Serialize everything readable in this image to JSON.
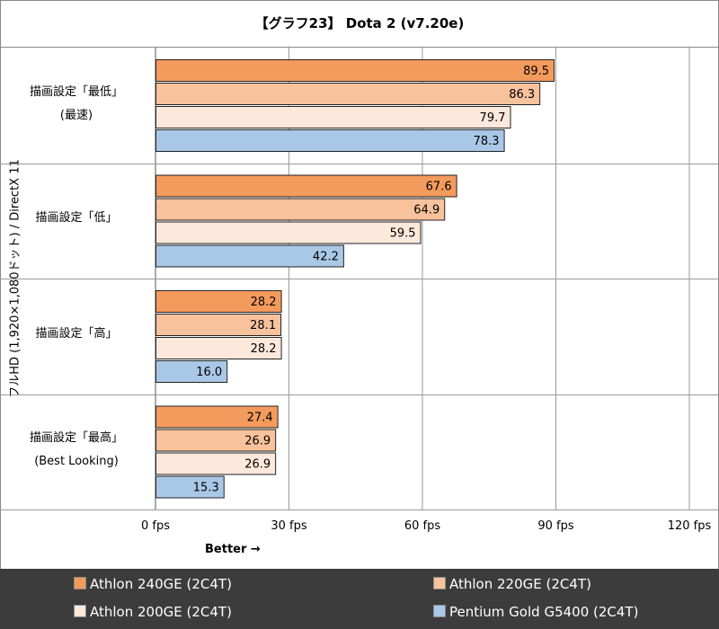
{
  "chart_data": {
    "type": "bar",
    "orientation": "horizontal",
    "title": "【グラフ23】 Dota 2 (v7.20e)",
    "ylabel": "フルHD (1,920×1,080ドット) / DirectX 11",
    "xlabel": "Better →",
    "xlim": [
      0,
      120
    ],
    "xticks": [
      0,
      30,
      60,
      90,
      120
    ],
    "xtick_labels": [
      "0 fps",
      "30 fps",
      "60 fps",
      "90 fps",
      "120 fps"
    ],
    "categories": [
      {
        "line1": "描画設定「最低」",
        "line2": "(最速)"
      },
      {
        "line1": "描画設定「低」",
        "line2": ""
      },
      {
        "line1": "描画設定「高」",
        "line2": ""
      },
      {
        "line1": "描画設定「最高」",
        "line2": "(Best Looking)"
      }
    ],
    "series": [
      {
        "name": "Athlon 240GE (2C4T)",
        "color": "#f39b5c",
        "values": [
          89.5,
          67.6,
          28.2,
          27.4
        ]
      },
      {
        "name": "Athlon 220GE (2C4T)",
        "color": "#f8c29c",
        "values": [
          86.3,
          64.9,
          28.1,
          26.9
        ]
      },
      {
        "name": "Athlon 200GE (2C4T)",
        "color": "#fde8dc",
        "values": [
          79.7,
          59.5,
          28.2,
          26.9
        ]
      },
      {
        "name": "Pentium Gold G5400 (2C4T)",
        "color": "#a9c8e8",
        "values": [
          78.3,
          42.2,
          16.0,
          15.3
        ]
      }
    ],
    "legend_position": "bottom"
  }
}
